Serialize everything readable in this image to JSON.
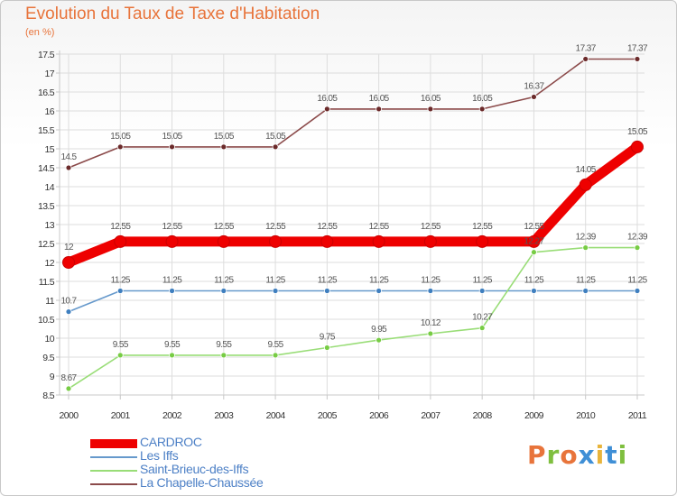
{
  "chart_data": {
    "type": "line",
    "title": "Evolution du Taux de Taxe d'Habitation",
    "subtitle": "(en %)",
    "xlabel": "",
    "ylabel": "",
    "x": [
      "2000",
      "2001",
      "2002",
      "2003",
      "2004",
      "2005",
      "2006",
      "2007",
      "2008",
      "2009",
      "2010",
      "2011"
    ],
    "ylim": [
      8.5,
      17.5
    ],
    "yticks": [
      "8.5",
      "9",
      "9.5",
      "10",
      "10.5",
      "11",
      "11.5",
      "12",
      "12.5",
      "13",
      "13.5",
      "14",
      "14.5",
      "15",
      "15.5",
      "16",
      "16.5",
      "17",
      "17.5"
    ],
    "grid": true,
    "legend_position": "bottom-left",
    "series": [
      {
        "name": "CARDROC",
        "color": "#ee0000",
        "marker_color": "#ee0000",
        "style": "thick",
        "values": [
          12,
          12.55,
          12.55,
          12.55,
          12.55,
          12.55,
          12.55,
          12.55,
          12.55,
          12.55,
          14.05,
          15.05
        ],
        "labels": [
          "12",
          "12.55",
          "12.55",
          "12.55",
          "12.55",
          "12.55",
          "12.55",
          "12.55",
          "12.55",
          "12.55",
          "14.05",
          "15.05"
        ]
      },
      {
        "name": "Les Iffs",
        "color": "#6699cc",
        "marker_color": "#3f7fbf",
        "style": "thin",
        "values": [
          10.7,
          11.25,
          11.25,
          11.25,
          11.25,
          11.25,
          11.25,
          11.25,
          11.25,
          11.25,
          11.25,
          11.25
        ],
        "labels": [
          "10.7",
          "11.25",
          "11.25",
          "11.25",
          "11.25",
          "11.25",
          "11.25",
          "11.25",
          "11.25",
          "11.25",
          "11.25",
          "11.25"
        ]
      },
      {
        "name": "Saint-Brieuc-des-Iffs",
        "color": "#99dd77",
        "marker_color": "#77cc44",
        "style": "thin",
        "values": [
          8.67,
          9.55,
          9.55,
          9.55,
          9.55,
          9.75,
          9.95,
          10.12,
          10.27,
          12.27,
          12.39,
          12.39
        ],
        "labels": [
          "8.67",
          "9.55",
          "9.55",
          "9.55",
          "9.55",
          "9.75",
          "9.95",
          "10.12",
          "10.27",
          "12.27",
          "12.39",
          "12.39"
        ]
      },
      {
        "name": "La Chapelle-Chaussée",
        "color": "#8b4a4a",
        "marker_color": "#6b2a2a",
        "style": "thin",
        "values": [
          14.5,
          15.05,
          15.05,
          15.05,
          15.05,
          16.05,
          16.05,
          16.05,
          16.05,
          16.37,
          17.37,
          17.37
        ],
        "labels": [
          "14.5",
          "15.05",
          "15.05",
          "15.05",
          "15.05",
          "16.05",
          "16.05",
          "16.05",
          "16.05",
          "16.37",
          "17.37",
          "17.37"
        ]
      }
    ]
  },
  "brand": {
    "text": "Proxiti",
    "letters": [
      {
        "ch": "P",
        "color": "#e8743b"
      },
      {
        "ch": "r",
        "color": "#7fbf3f"
      },
      {
        "ch": "o",
        "color": "#e8743b"
      },
      {
        "ch": "x",
        "color": "#3f8fd6"
      },
      {
        "ch": "i",
        "color": "#e8b43b"
      },
      {
        "ch": "t",
        "color": "#3f8fd6"
      },
      {
        "ch": "i",
        "color": "#7fbf3f"
      }
    ]
  }
}
